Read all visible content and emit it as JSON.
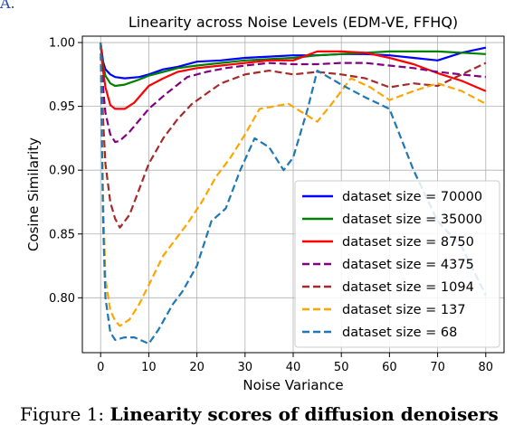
{
  "corner_label": "A.",
  "caption": {
    "prefix": "Figure 1: ",
    "bold": "Linearity scores of diffusion denoisers"
  },
  "chart_data": {
    "type": "line",
    "title": "Linearity across Noise Levels (EDM-VE, FFHQ)",
    "xlabel": "Noise Variance",
    "ylabel": "Cosine Similarity",
    "xlim": [
      -3.8,
      83.8
    ],
    "ylim": [
      0.757,
      1.005
    ],
    "xticks": [
      0,
      10,
      20,
      30,
      40,
      50,
      60,
      70,
      80
    ],
    "yticks": [
      0.8,
      0.85,
      0.9,
      0.95,
      1.0
    ],
    "ytick_labels": [
      "0.80",
      "0.85",
      "0.90",
      "0.95",
      "1.00"
    ],
    "grid": true,
    "legend_position": "lower right",
    "series": [
      {
        "name": "dataset size = 70000",
        "color": "#0000ff",
        "dash": "solid",
        "points": [
          [
            0,
            1.0
          ],
          [
            0.5,
            0.985
          ],
          [
            1,
            0.979
          ],
          [
            2,
            0.975
          ],
          [
            3,
            0.973
          ],
          [
            5,
            0.972
          ],
          [
            8,
            0.973
          ],
          [
            10,
            0.975
          ],
          [
            13,
            0.979
          ],
          [
            16,
            0.981
          ],
          [
            20,
            0.985
          ],
          [
            25,
            0.986
          ],
          [
            30,
            0.988
          ],
          [
            35,
            0.989
          ],
          [
            40,
            0.99
          ],
          [
            45,
            0.99
          ],
          [
            50,
            0.991
          ],
          [
            55,
            0.991
          ],
          [
            60,
            0.99
          ],
          [
            65,
            0.988
          ],
          [
            70,
            0.986
          ],
          [
            75,
            0.992
          ],
          [
            80,
            0.996
          ]
        ]
      },
      {
        "name": "dataset size = 35000",
        "color": "#008000",
        "dash": "solid",
        "points": [
          [
            0,
            1.0
          ],
          [
            0.5,
            0.982
          ],
          [
            1,
            0.974
          ],
          [
            2,
            0.968
          ],
          [
            3,
            0.966
          ],
          [
            5,
            0.967
          ],
          [
            8,
            0.971
          ],
          [
            10,
            0.974
          ],
          [
            13,
            0.977
          ],
          [
            16,
            0.98
          ],
          [
            20,
            0.982
          ],
          [
            25,
            0.984
          ],
          [
            30,
            0.986
          ],
          [
            35,
            0.987
          ],
          [
            40,
            0.988
          ],
          [
            45,
            0.99
          ],
          [
            50,
            0.991
          ],
          [
            55,
            0.992
          ],
          [
            60,
            0.993
          ],
          [
            65,
            0.993
          ],
          [
            70,
            0.993
          ],
          [
            75,
            0.992
          ],
          [
            80,
            0.991
          ]
        ]
      },
      {
        "name": "dataset size = 8750",
        "color": "#ff0000",
        "dash": "solid",
        "points": [
          [
            0,
            1.0
          ],
          [
            0.5,
            0.978
          ],
          [
            1,
            0.965
          ],
          [
            2,
            0.951
          ],
          [
            3,
            0.948
          ],
          [
            5,
            0.948
          ],
          [
            7,
            0.953
          ],
          [
            10,
            0.966
          ],
          [
            13,
            0.972
          ],
          [
            16,
            0.977
          ],
          [
            20,
            0.98
          ],
          [
            25,
            0.982
          ],
          [
            30,
            0.984
          ],
          [
            35,
            0.986
          ],
          [
            40,
            0.986
          ],
          [
            45,
            0.993
          ],
          [
            50,
            0.993
          ],
          [
            55,
            0.992
          ],
          [
            60,
            0.988
          ],
          [
            65,
            0.983
          ],
          [
            70,
            0.976
          ],
          [
            75,
            0.97
          ],
          [
            80,
            0.962
          ]
        ]
      },
      {
        "name": "dataset size = 4375",
        "color": "#800080",
        "dash": "dash",
        "points": [
          [
            0,
            1.0
          ],
          [
            0.5,
            0.965
          ],
          [
            1,
            0.945
          ],
          [
            2,
            0.928
          ],
          [
            3,
            0.922
          ],
          [
            4,
            0.923
          ],
          [
            6,
            0.93
          ],
          [
            8,
            0.939
          ],
          [
            10,
            0.948
          ],
          [
            13,
            0.958
          ],
          [
            16,
            0.967
          ],
          [
            18,
            0.973
          ],
          [
            22,
            0.977
          ],
          [
            26,
            0.98
          ],
          [
            30,
            0.982
          ],
          [
            35,
            0.984
          ],
          [
            40,
            0.983
          ],
          [
            45,
            0.983
          ],
          [
            50,
            0.984
          ],
          [
            55,
            0.984
          ],
          [
            60,
            0.982
          ],
          [
            65,
            0.98
          ],
          [
            70,
            0.977
          ],
          [
            75,
            0.975
          ],
          [
            80,
            0.973
          ]
        ]
      },
      {
        "name": "dataset size = 1094",
        "color": "#a52a2a",
        "dash": "dash",
        "points": [
          [
            0,
            1.0
          ],
          [
            0.5,
            0.94
          ],
          [
            1,
            0.905
          ],
          [
            2,
            0.875
          ],
          [
            3,
            0.862
          ],
          [
            4,
            0.855
          ],
          [
            6,
            0.865
          ],
          [
            8,
            0.885
          ],
          [
            10,
            0.905
          ],
          [
            13,
            0.925
          ],
          [
            16,
            0.94
          ],
          [
            19,
            0.952
          ],
          [
            22,
            0.96
          ],
          [
            25,
            0.968
          ],
          [
            30,
            0.975
          ],
          [
            35,
            0.978
          ],
          [
            40,
            0.975
          ],
          [
            45,
            0.977
          ],
          [
            50,
            0.975
          ],
          [
            55,
            0.972
          ],
          [
            60,
            0.965
          ],
          [
            65,
            0.968
          ],
          [
            70,
            0.966
          ],
          [
            75,
            0.975
          ],
          [
            80,
            0.984
          ]
        ]
      },
      {
        "name": "dataset size = 137",
        "color": "#ffa500",
        "dash": "dash",
        "points": [
          [
            0,
            1.0
          ],
          [
            0.5,
            0.88
          ],
          [
            1,
            0.815
          ],
          [
            2,
            0.79
          ],
          [
            3,
            0.782
          ],
          [
            4,
            0.778
          ],
          [
            6,
            0.783
          ],
          [
            8,
            0.795
          ],
          [
            10,
            0.81
          ],
          [
            13,
            0.833
          ],
          [
            16,
            0.848
          ],
          [
            18,
            0.858
          ],
          [
            21,
            0.875
          ],
          [
            24,
            0.895
          ],
          [
            27,
            0.91
          ],
          [
            30,
            0.928
          ],
          [
            33,
            0.948
          ],
          [
            36,
            0.95
          ],
          [
            39,
            0.952
          ],
          [
            42,
            0.945
          ],
          [
            45,
            0.938
          ],
          [
            48,
            0.952
          ],
          [
            52,
            0.972
          ],
          [
            56,
            0.965
          ],
          [
            60,
            0.955
          ],
          [
            65,
            0.962
          ],
          [
            70,
            0.968
          ],
          [
            75,
            0.962
          ],
          [
            80,
            0.952
          ]
        ]
      },
      {
        "name": "dataset size = 68",
        "color": "#1f77b4",
        "dash": "dash",
        "points": [
          [
            0,
            1.0
          ],
          [
            0.5,
            0.86
          ],
          [
            1,
            0.8
          ],
          [
            2,
            0.773
          ],
          [
            3,
            0.767
          ],
          [
            5,
            0.769
          ],
          [
            7,
            0.769
          ],
          [
            10,
            0.764
          ],
          [
            12,
            0.775
          ],
          [
            15,
            0.795
          ],
          [
            17,
            0.805
          ],
          [
            20,
            0.825
          ],
          [
            23,
            0.86
          ],
          [
            26,
            0.87
          ],
          [
            29,
            0.9
          ],
          [
            32,
            0.925
          ],
          [
            35,
            0.918
          ],
          [
            38,
            0.9
          ],
          [
            40,
            0.91
          ],
          [
            43,
            0.948
          ],
          [
            45,
            0.978
          ],
          [
            50,
            0.967
          ],
          [
            55,
            0.957
          ],
          [
            60,
            0.948
          ],
          [
            65,
            0.9
          ],
          [
            70,
            0.86
          ],
          [
            75,
            0.84
          ],
          [
            80,
            0.802
          ]
        ]
      }
    ]
  }
}
